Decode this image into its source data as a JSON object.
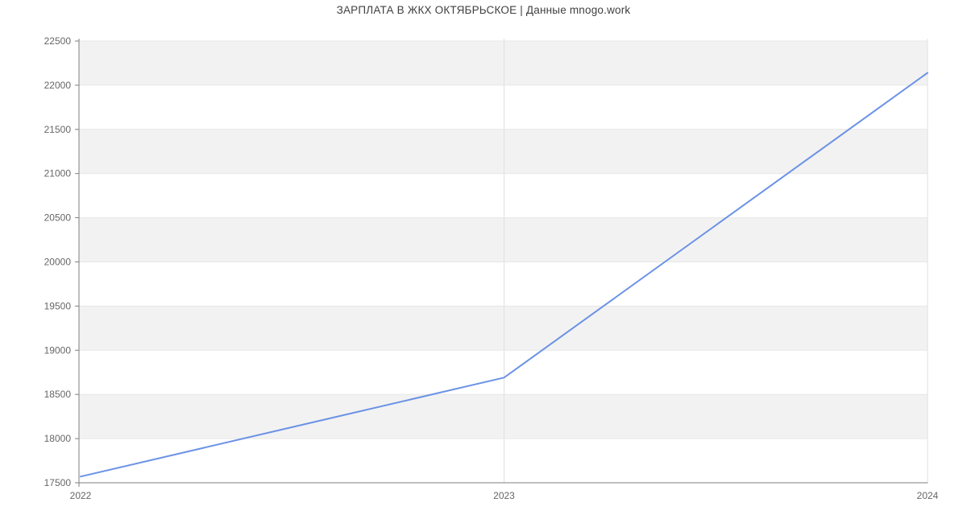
{
  "title": "ЗАРПЛАТА В ЖКХ ОКТЯБРЬСКОЕ | Данные mnogo.work",
  "chart_data": {
    "type": "line",
    "x": [
      2022,
      2023,
      2024
    ],
    "series": [
      {
        "name": "Зарплата в ЖКХ Октябрьское",
        "values": [
          17570,
          18690,
          22140
        ]
      }
    ],
    "xticks": [
      "2022",
      "2023",
      "2024"
    ],
    "yticks": [
      17500,
      18000,
      18500,
      19000,
      19500,
      20000,
      20500,
      21000,
      21500,
      22000,
      22500
    ],
    "ylim": [
      17500,
      22500
    ],
    "xlabel": "",
    "ylabel": "",
    "grid": true,
    "legend_visible": false,
    "band_fill_pattern": "alternating horizontal bands, gray above each 1000-step gridline",
    "colors": {
      "line": "#6b92e5",
      "band": "#f2f2f2",
      "h_grid": "#e7e7e7",
      "v_grid": "#e0e0e0",
      "axis": "#7f7f7f",
      "tick_label": "#666666",
      "title": "#404040",
      "background": "#ffffff"
    }
  }
}
